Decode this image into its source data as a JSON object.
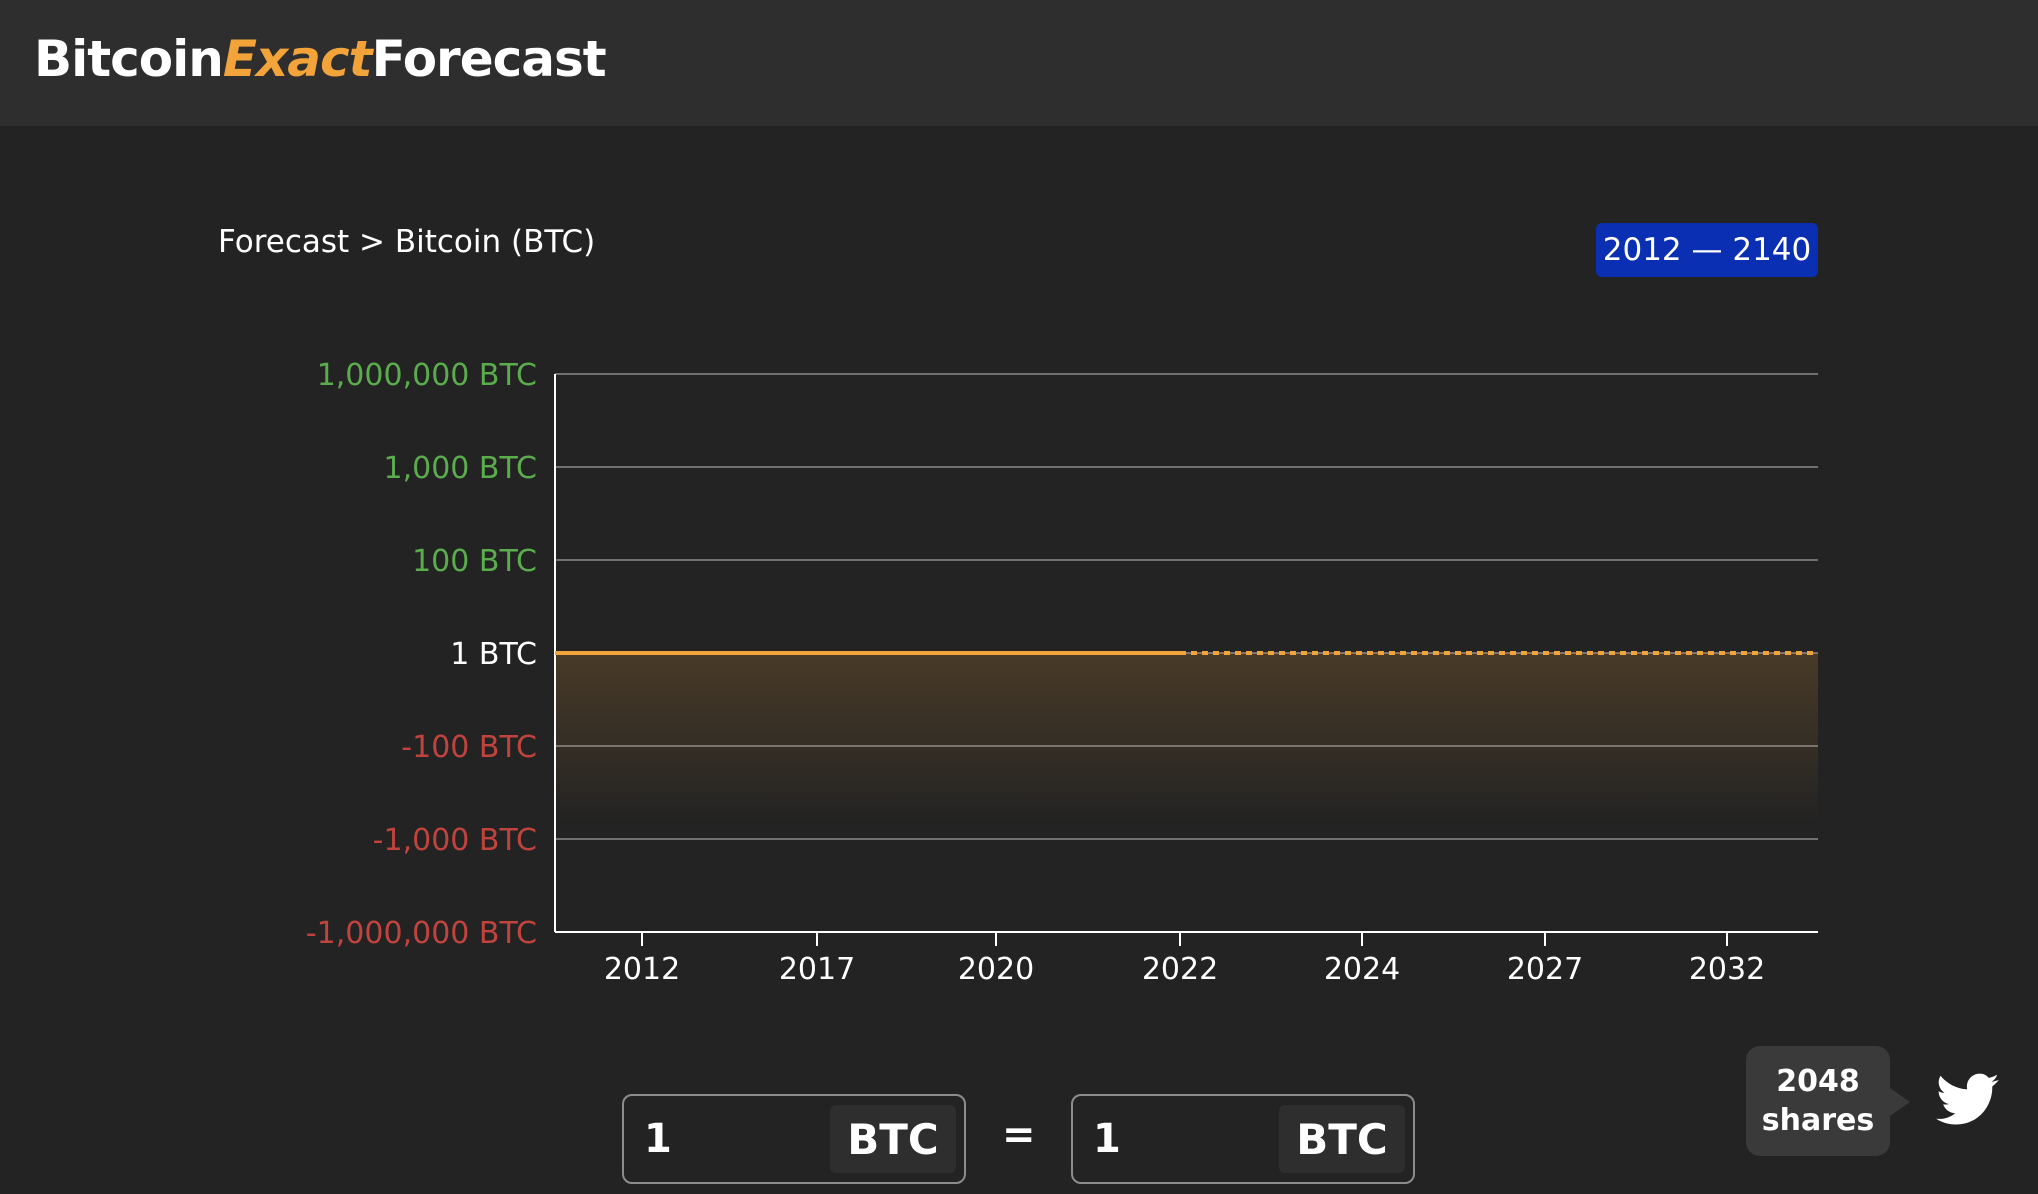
{
  "header": {
    "logo_part1": "Bitcoin",
    "logo_part2": "Exact",
    "logo_part3": "Forecast"
  },
  "breadcrumb": "Forecast > Bitcoin (BTC)",
  "range_badge": "2012 — 2140",
  "colors": {
    "accent": "#f2a33a",
    "positive": "#5aac4d",
    "negative": "#c1433d",
    "badge": "#0b2fb3"
  },
  "chart_data": {
    "type": "line",
    "x": [
      "2012",
      "2017",
      "2020",
      "2022",
      "2024",
      "2027",
      "2032"
    ],
    "y_ticks": [
      {
        "label": "1,000,000 BTC",
        "sign": "positive"
      },
      {
        "label": "1,000 BTC",
        "sign": "positive"
      },
      {
        "label": "100 BTC",
        "sign": "positive"
      },
      {
        "label": "1 BTC",
        "sign": "neutral"
      },
      {
        "label": "-100 BTC",
        "sign": "negative"
      },
      {
        "label": "-1,000 BTC",
        "sign": "negative"
      },
      {
        "label": "-1,000,000 BTC",
        "sign": "negative"
      }
    ],
    "series": [
      {
        "values": [
          1,
          1,
          1,
          1
        ],
        "x": [
          "2012",
          "2017",
          "2020",
          "2022"
        ],
        "style": "solid"
      },
      {
        "values": [
          1,
          1,
          1,
          1
        ],
        "x": [
          "2022",
          "2024",
          "2027",
          "2032"
        ],
        "style": "dashed"
      }
    ],
    "grid": true
  },
  "converter": {
    "left_amount": "1",
    "left_unit": "BTC",
    "equals": "=",
    "right_amount": "1",
    "right_unit": "BTC"
  },
  "share": {
    "count": "2048",
    "label": "shares",
    "icon": "twitter-icon"
  }
}
